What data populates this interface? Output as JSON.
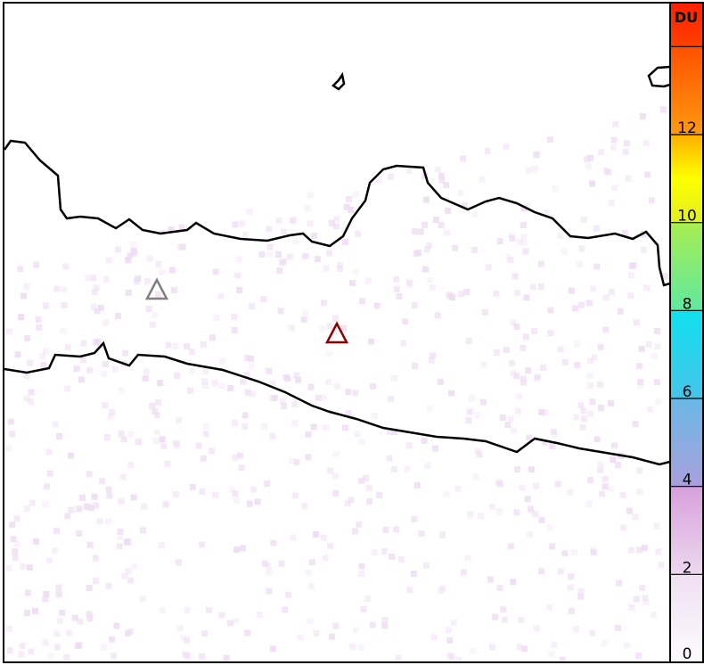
{
  "colorbar": {
    "unit": "DU",
    "ticks": [
      "0",
      "2",
      "4",
      "6",
      "8",
      "10",
      "12"
    ],
    "colors": [
      "#f8f2fa",
      "#e6c0e6",
      "#a9a9e0",
      "#3ec8ea",
      "#7ee68a",
      "#fff000",
      "#ff7a10",
      "#ff2800"
    ]
  },
  "markers": [
    {
      "name": "volcano-marker-gray",
      "color": "#808080"
    },
    {
      "name": "volcano-marker-red",
      "color": "#8b0000"
    }
  ],
  "coastline_color": "#000000"
}
